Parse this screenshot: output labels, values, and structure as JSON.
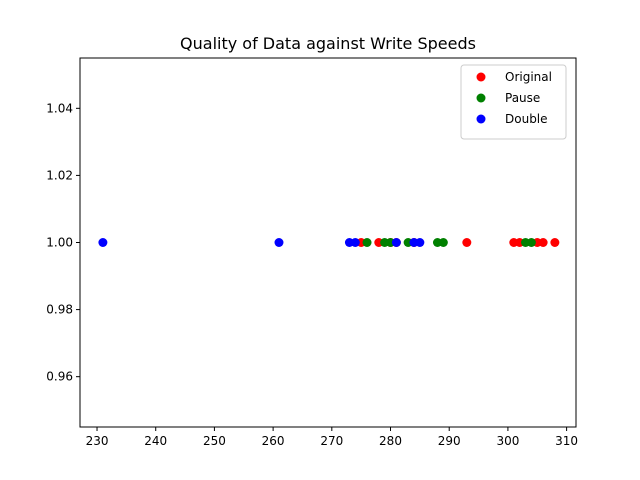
{
  "chart_data": {
    "type": "scatter",
    "title": "Quality of Data against Write Speeds",
    "xlabel": "",
    "ylabel": "",
    "xlim": [
      227.1,
      311.6
    ],
    "ylim": [
      0.945,
      1.055
    ],
    "xticks": [
      230,
      240,
      250,
      260,
      270,
      280,
      290,
      300,
      310
    ],
    "yticks": [
      0.96,
      0.98,
      1.0,
      1.02,
      1.04
    ],
    "xtick_labels": [
      "230",
      "240",
      "250",
      "260",
      "270",
      "280",
      "290",
      "300",
      "310"
    ],
    "ytick_labels": [
      "0.96",
      "0.98",
      "1.00",
      "1.02",
      "1.04"
    ],
    "grid": false,
    "legend_position": "top-right",
    "series": [
      {
        "name": "Original",
        "color": "#ff0000",
        "points": [
          {
            "x": 275,
            "y": 1.0
          },
          {
            "x": 278,
            "y": 1.0
          },
          {
            "x": 280,
            "y": 1.0
          },
          {
            "x": 281,
            "y": 1.0
          },
          {
            "x": 284,
            "y": 1.0
          },
          {
            "x": 293,
            "y": 1.0
          },
          {
            "x": 301,
            "y": 1.0
          },
          {
            "x": 302,
            "y": 1.0
          },
          {
            "x": 305,
            "y": 1.0
          },
          {
            "x": 306,
            "y": 1.0
          },
          {
            "x": 308,
            "y": 1.0
          }
        ]
      },
      {
        "name": "Pause",
        "color": "#008000",
        "points": [
          {
            "x": 276,
            "y": 1.0
          },
          {
            "x": 279,
            "y": 1.0
          },
          {
            "x": 280,
            "y": 1.0
          },
          {
            "x": 283,
            "y": 1.0
          },
          {
            "x": 288,
            "y": 1.0
          },
          {
            "x": 289,
            "y": 1.0
          },
          {
            "x": 303,
            "y": 1.0
          },
          {
            "x": 304,
            "y": 1.0
          }
        ]
      },
      {
        "name": "Double",
        "color": "#0000ff",
        "points": [
          {
            "x": 231,
            "y": 1.0
          },
          {
            "x": 261,
            "y": 1.0
          },
          {
            "x": 273,
            "y": 1.0
          },
          {
            "x": 274,
            "y": 1.0
          },
          {
            "x": 281,
            "y": 1.0
          },
          {
            "x": 284,
            "y": 1.0
          },
          {
            "x": 285,
            "y": 1.0
          }
        ]
      }
    ]
  }
}
